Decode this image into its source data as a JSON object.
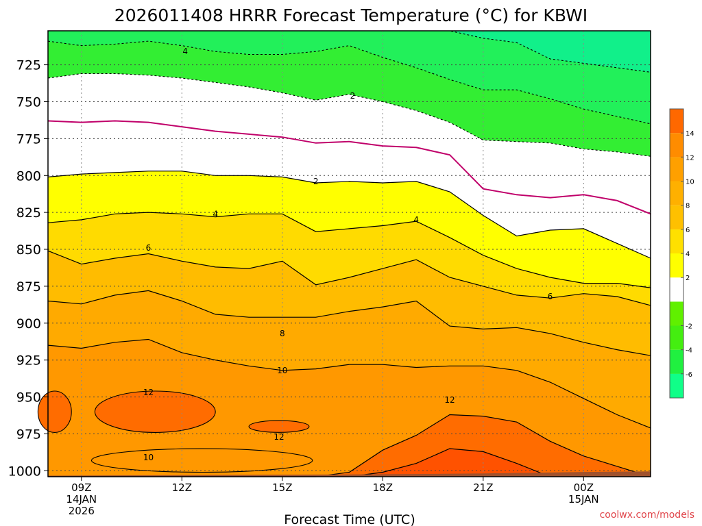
{
  "chart_data": {
    "type": "contour",
    "title": "2026011408 HRRR Forecast Temperature (°C) for KBWI",
    "xlabel": "Forecast Time (UTC)",
    "ylabel": "",
    "credit": "coolwx.com/models",
    "x_hours": [
      8,
      9,
      10,
      11,
      12,
      13,
      14,
      15,
      16,
      17,
      18,
      19,
      20,
      21,
      22,
      23,
      24,
      25,
      26
    ],
    "x_ticks": [
      {
        "hour": 9,
        "lines": [
          "09Z",
          "14JAN",
          "2026"
        ]
      },
      {
        "hour": 12,
        "lines": [
          "12Z"
        ]
      },
      {
        "hour": 15,
        "lines": [
          "15Z"
        ]
      },
      {
        "hour": 18,
        "lines": [
          "18Z"
        ]
      },
      {
        "hour": 21,
        "lines": [
          "21Z"
        ]
      },
      {
        "hour": 24,
        "lines": [
          "00Z",
          "15JAN"
        ]
      }
    ],
    "y_ticks": [
      725,
      750,
      775,
      800,
      825,
      850,
      875,
      900,
      925,
      950,
      975,
      1000
    ],
    "pressure_range_hPa": [
      702,
      1004
    ],
    "series_positive": [
      {
        "name": "2",
        "values": [
          801,
          799,
          798,
          797,
          797,
          800,
          800,
          801,
          805,
          804,
          805,
          804,
          811,
          827,
          841,
          837,
          836,
          846,
          856
        ]
      },
      {
        "name": "4",
        "values": [
          832,
          830,
          826,
          825,
          826,
          828,
          826,
          826,
          838,
          836,
          834,
          831,
          842,
          854,
          863,
          869,
          873,
          873,
          876
        ]
      },
      {
        "name": "6",
        "values": [
          851,
          860,
          856,
          853,
          858,
          862,
          863,
          858,
          874,
          869,
          863,
          857,
          869,
          875,
          881,
          883,
          880,
          882,
          888
        ]
      },
      {
        "name": "8",
        "values": [
          885,
          887,
          881,
          878,
          885,
          894,
          896,
          896,
          896,
          892,
          889,
          885,
          902,
          904,
          903,
          907,
          913,
          918,
          922
        ]
      },
      {
        "name": "10",
        "values": [
          915,
          917,
          913,
          911,
          920,
          925,
          929,
          932,
          931,
          928,
          928,
          930,
          929,
          929,
          932,
          940,
          951,
          962,
          971
        ]
      },
      {
        "name": "12",
        "values": [
          1004,
          1004,
          1004,
          1004,
          1004,
          1004,
          1004,
          1004,
          1004,
          1001,
          986,
          976,
          962,
          963,
          967,
          980,
          990,
          997,
          1004
        ]
      },
      {
        "name": "14",
        "values": [
          1004,
          1004,
          1004,
          1004,
          1004,
          1004,
          1004,
          1004,
          1004,
          1004,
          1001,
          995,
          985,
          987,
          995,
          1004,
          1004,
          1004,
          1004
        ]
      }
    ],
    "series_negative": [
      {
        "name": "0",
        "values": [
          763,
          764,
          763,
          764,
          767,
          770,
          772,
          774,
          778,
          777,
          780,
          781,
          786,
          809,
          813,
          815,
          813,
          817,
          826
        ]
      },
      {
        "name": "-2",
        "values": [
          734,
          731,
          731,
          732,
          734,
          737,
          740,
          744,
          749,
          745,
          750,
          756,
          764,
          776,
          777,
          778,
          782,
          784,
          787
        ]
      },
      {
        "name": "-4",
        "values": [
          709,
          712,
          711,
          709,
          712,
          716,
          718,
          718,
          716,
          712,
          720,
          727,
          735,
          742,
          742,
          748,
          755,
          760,
          765
        ]
      },
      {
        "name": "-6",
        "values": [
          702,
          702,
          702,
          702,
          702,
          702,
          702,
          702,
          702,
          702,
          702,
          702,
          702,
          707,
          710,
          721,
          724,
          727,
          730
        ]
      }
    ],
    "small_cells": [
      {
        "label": "12",
        "center_hour": 11.2,
        "center_p": 960,
        "half_hours": 1.8,
        "half_p": 14
      },
      {
        "label": "12",
        "center_hour": 14.9,
        "center_p": 970,
        "half_hours": 0.9,
        "half_p": 4
      },
      {
        "label": "12",
        "center_hour": 8.2,
        "center_p": 960,
        "half_hours": 0.5,
        "half_p": 14
      },
      {
        "label": "10",
        "center_hour": 12.6,
        "center_p": 993,
        "half_hours": 3.3,
        "half_p": 8
      }
    ],
    "contour_labels": [
      {
        "text": "4",
        "hour": 12.1,
        "p": 716
      },
      {
        "text": "2",
        "hour": 17.1,
        "p": 746
      },
      {
        "text": "2",
        "hour": 16.0,
        "p": 804
      },
      {
        "text": "4",
        "hour": 13.0,
        "p": 826
      },
      {
        "text": "4",
        "hour": 19.0,
        "p": 830
      },
      {
        "text": "6",
        "hour": 11.0,
        "p": 849
      },
      {
        "text": "6",
        "hour": 23.0,
        "p": 882
      },
      {
        "text": "8",
        "hour": 15.0,
        "p": 907
      },
      {
        "text": "10",
        "hour": 15.0,
        "p": 932
      },
      {
        "text": "12",
        "hour": 11.0,
        "p": 947
      },
      {
        "text": "12",
        "hour": 14.9,
        "p": 977
      },
      {
        "text": "12",
        "hour": 20.0,
        "p": 952
      },
      {
        "text": "10",
        "hour": 11.0,
        "p": 991
      }
    ],
    "colorbar": {
      "levels": [
        -8,
        -6,
        -4,
        -2,
        0,
        2,
        4,
        6,
        8,
        10,
        12,
        14,
        16
      ],
      "colors": [
        "#10ff88",
        "#20f040",
        "#44ee10",
        "#60f000",
        "#ffffff",
        "#ffff00",
        "#ffe000",
        "#ffc000",
        "#ffb000",
        "#ffa000",
        "#ff8c00",
        "#ff6800",
        "#ff5000"
      ],
      "tick_labels": [
        "-6",
        "-4",
        "-2",
        "2",
        "4",
        "6",
        "8",
        "10",
        "12",
        "14"
      ],
      "tick_values": [
        -6,
        -4,
        -2,
        2,
        4,
        6,
        8,
        10,
        12,
        14
      ]
    },
    "band_colors": {
      "cold_ge6": "#11f08a",
      "cold_4_6": "#22f05a",
      "cold_2_4": "#33ee33",
      "zero_band": "#ffffff",
      "warm_0_2": "#ffffff",
      "warm_2_4": "#ffff00",
      "warm_4_6": "#ffdb00",
      "warm_6_8": "#ffbc00",
      "warm_8_10": "#ffaa00",
      "warm_10_12": "#ff9800",
      "warm_12_14": "#ff6c00",
      "warm_ge14": "#ff5200",
      "ground": "#a0522d",
      "zero_line": "#c0006a"
    }
  }
}
